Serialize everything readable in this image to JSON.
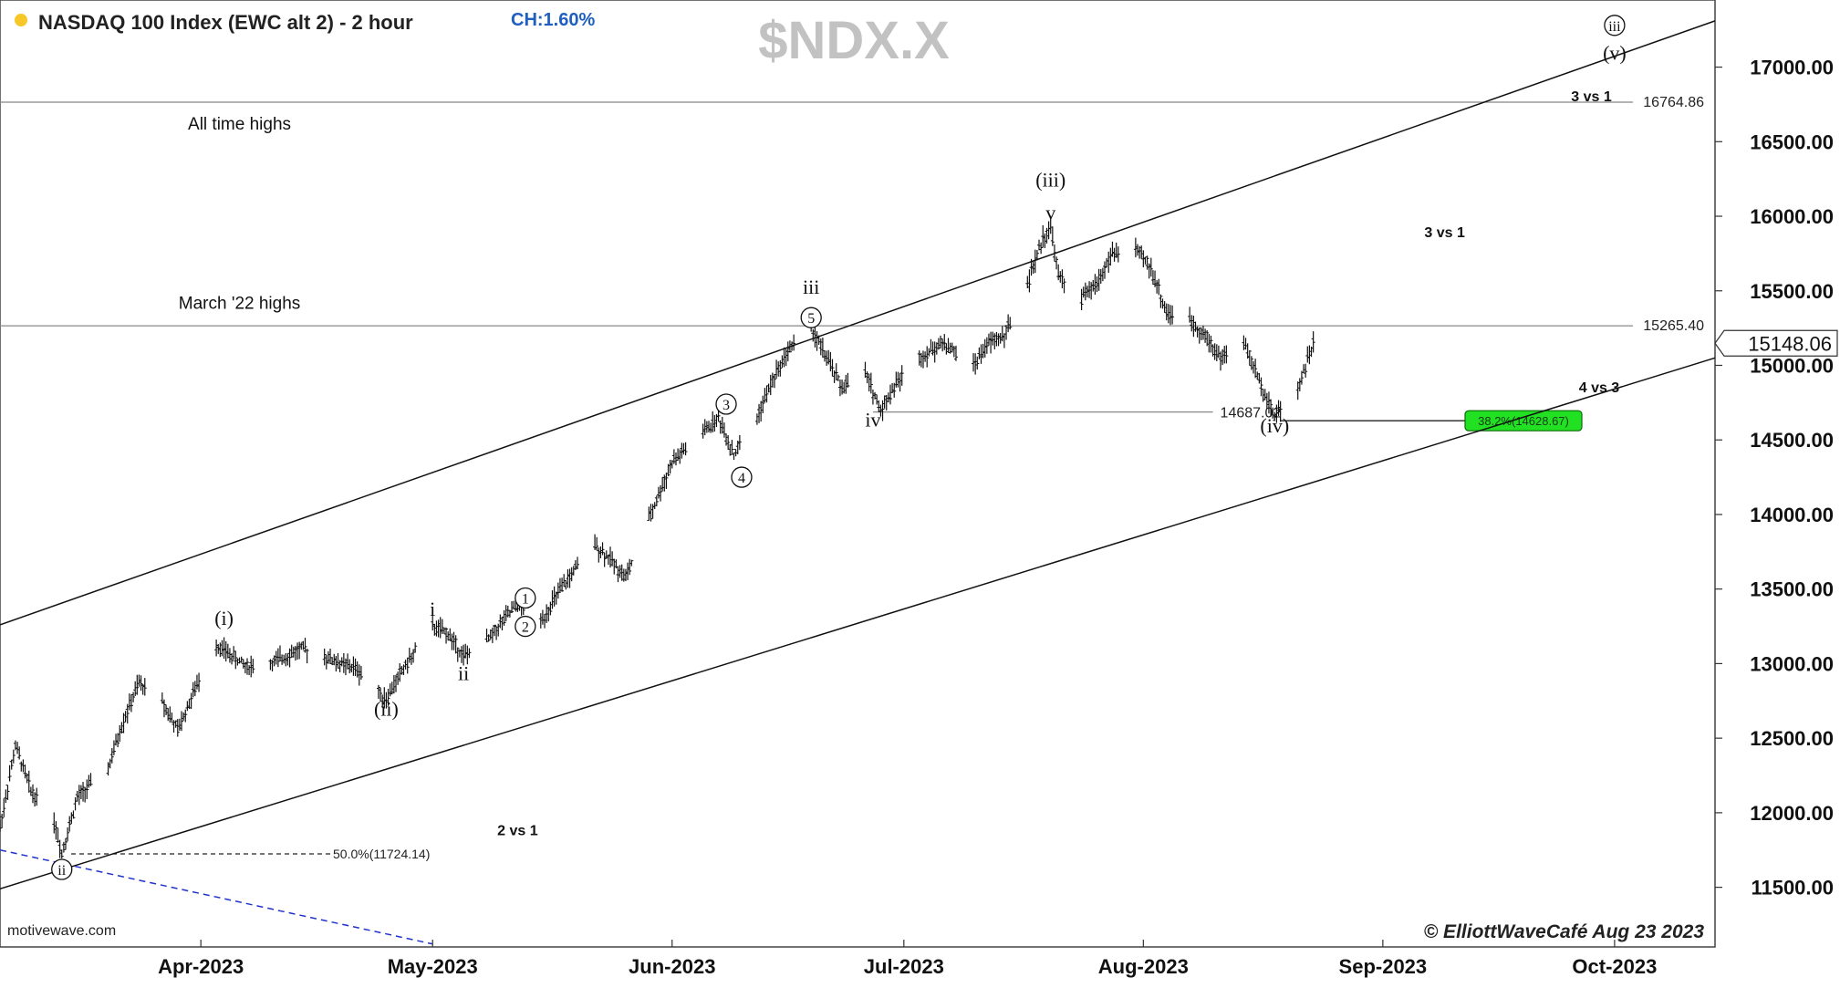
{
  "header": {
    "title": "NASDAQ 100 Index (EWC alt 2) - 2 hour",
    "change": "CH:1.60%",
    "watermark": "$NDX.X"
  },
  "footer": {
    "credit": "© ElliottWaveCafé Aug 23 2023",
    "source": "motivewave.com"
  },
  "chart_data": {
    "type": "ohlc",
    "x_start": "2023-03-06",
    "x_ticks": [
      "Apr-2023",
      "May-2023",
      "Jun-2023",
      "Jul-2023",
      "Aug-2023",
      "Sep-2023",
      "Oct-2023"
    ],
    "x_tick_dates": [
      "2023-04-01",
      "2023-05-01",
      "2023-06-01",
      "2023-07-01",
      "2023-08-01",
      "2023-09-01",
      "2023-10-01"
    ],
    "x_end": "2023-10-14",
    "ylim": [
      11100,
      17450
    ],
    "y_ticks": [
      11500,
      12000,
      12500,
      13000,
      13500,
      14000,
      14500,
      15000,
      15500,
      16000,
      16500,
      17000
    ],
    "y_tick_labels": [
      "11500.00",
      "12000.00",
      "12500.00",
      "13000.00",
      "13500.00",
      "14000.00",
      "14500.00",
      "15000.00",
      "15500.00",
      "16000.00",
      "16500.00",
      "17000.00"
    ],
    "last_price": 15148.06,
    "last_price_label": "15148.06",
    "price_path": [
      [
        "2023-03-06",
        11900
      ],
      [
        "2023-03-08",
        12450
      ],
      [
        "2023-03-10",
        12150
      ],
      [
        "2023-03-13",
        11950
      ],
      [
        "2023-03-14",
        11730
      ],
      [
        "2023-03-16",
        12100
      ],
      [
        "2023-03-20",
        12300
      ],
      [
        "2023-03-22",
        12620
      ],
      [
        "2023-03-24",
        12870
      ],
      [
        "2023-03-27",
        12750
      ],
      [
        "2023-03-29",
        12550
      ],
      [
        "2023-03-31",
        12800
      ],
      [
        "2023-04-03",
        13130
      ],
      [
        "2023-04-05",
        13050
      ],
      [
        "2023-04-07",
        12980
      ],
      [
        "2023-04-10",
        13000
      ],
      [
        "2023-04-12",
        13050
      ],
      [
        "2023-04-14",
        13100
      ],
      [
        "2023-04-17",
        13050
      ],
      [
        "2023-04-19",
        13000
      ],
      [
        "2023-04-21",
        12970
      ],
      [
        "2023-04-25",
        12760
      ],
      [
        "2023-04-27",
        12950
      ],
      [
        "2023-05-01",
        13250
      ],
      [
        "2023-05-03",
        13200
      ],
      [
        "2023-05-05",
        13050
      ],
      [
        "2023-05-08",
        13150
      ],
      [
        "2023-05-10",
        13280
      ],
      [
        "2023-05-12",
        13400
      ],
      [
        "2023-05-15",
        13280
      ],
      [
        "2023-05-17",
        13450
      ],
      [
        "2023-05-19",
        13600
      ],
      [
        "2023-05-22",
        13800
      ],
      [
        "2023-05-24",
        13700
      ],
      [
        "2023-05-26",
        13580
      ],
      [
        "2023-05-30",
        14100
      ],
      [
        "2023-06-01",
        14350
      ],
      [
        "2023-06-05",
        14550
      ],
      [
        "2023-06-07",
        14650
      ],
      [
        "2023-06-09",
        14400
      ],
      [
        "2023-06-12",
        14650
      ],
      [
        "2023-06-14",
        14900
      ],
      [
        "2023-06-16",
        15100
      ],
      [
        "2023-06-19",
        15250
      ],
      [
        "2023-06-21",
        15050
      ],
      [
        "2023-06-23",
        14850
      ],
      [
        "2023-06-26",
        14950
      ],
      [
        "2023-06-28",
        14700
      ],
      [
        "2023-06-30",
        14880
      ],
      [
        "2023-07-03",
        15050
      ],
      [
        "2023-07-06",
        15150
      ],
      [
        "2023-07-10",
        15000
      ],
      [
        "2023-07-12",
        15150
      ],
      [
        "2023-07-14",
        15200
      ],
      [
        "2023-07-17",
        15550
      ],
      [
        "2023-07-19",
        15850
      ],
      [
        "2023-07-20",
        15930
      ],
      [
        "2023-07-21",
        15600
      ],
      [
        "2023-07-24",
        15450
      ],
      [
        "2023-07-26",
        15550
      ],
      [
        "2023-07-28",
        15750
      ],
      [
        "2023-07-31",
        15780
      ],
      [
        "2023-08-02",
        15650
      ],
      [
        "2023-08-04",
        15350
      ],
      [
        "2023-08-07",
        15300
      ],
      [
        "2023-08-09",
        15200
      ],
      [
        "2023-08-11",
        15050
      ],
      [
        "2023-08-14",
        15150
      ],
      [
        "2023-08-16",
        14900
      ],
      [
        "2023-08-18",
        14660
      ],
      [
        "2023-08-21",
        14850
      ],
      [
        "2023-08-22",
        15000
      ],
      [
        "2023-08-23",
        15148
      ]
    ],
    "horizontal_levels": [
      {
        "value": 16764.86,
        "label": "16764.86",
        "note": "All time highs"
      },
      {
        "value": 15265.4,
        "label": "15265.40",
        "note": "March '22 highs"
      },
      {
        "value": 14687.02,
        "label": "14687.02",
        "from": "2023-06-27",
        "to": "2023-08-10"
      }
    ],
    "fibonacci": [
      {
        "label": "50.0%(11724.14)",
        "value": 11724.14,
        "style": "dashed"
      },
      {
        "label": "38.2%(14628.67)",
        "value": 14628.67,
        "style": "box"
      }
    ],
    "channel_lines": [
      {
        "from": [
          "2023-03-06",
          13260
        ],
        "to": [
          "2023-10-14",
          17310
        ]
      },
      {
        "from": [
          "2023-03-06",
          11490
        ],
        "to": [
          "2023-10-14",
          15050
        ]
      }
    ],
    "dashed_line": {
      "from": [
        "2023-03-06",
        11750
      ],
      "to": [
        "2023-05-01",
        11120
      ]
    },
    "wave_labels": [
      {
        "text": "ii",
        "date": "2023-03-14",
        "price": 11620,
        "circled": true
      },
      {
        "text": "(i)",
        "date": "2023-04-04",
        "price": 13260
      },
      {
        "text": "(ii)",
        "date": "2023-04-25",
        "price": 12650
      },
      {
        "text": "i",
        "date": "2023-05-01",
        "price": 13320
      },
      {
        "text": "ii",
        "date": "2023-05-05",
        "price": 12890
      },
      {
        "text": "1",
        "date": "2023-05-13",
        "price": 13440,
        "circled": true
      },
      {
        "text": "2",
        "date": "2023-05-13",
        "price": 13250,
        "circled": true
      },
      {
        "text": "3",
        "date": "2023-06-08",
        "price": 14740,
        "circled": true
      },
      {
        "text": "4",
        "date": "2023-06-10",
        "price": 14250,
        "circled": true
      },
      {
        "text": "5",
        "date": "2023-06-19",
        "price": 15320,
        "circled": true
      },
      {
        "text": "iii",
        "date": "2023-06-19",
        "price": 15480
      },
      {
        "text": "iv",
        "date": "2023-06-27",
        "price": 14590
      },
      {
        "text": "v",
        "date": "2023-07-20",
        "price": 15980
      },
      {
        "text": "(iii)",
        "date": "2023-07-20",
        "price": 16200
      },
      {
        "text": "(iv)",
        "date": "2023-08-18",
        "price": 14550
      },
      {
        "text": "iii",
        "date": "2023-10-01",
        "price": 17280,
        "circled": true
      },
      {
        "text": "(v)",
        "date": "2023-10-01",
        "price": 17050
      }
    ],
    "annotations": [
      {
        "text": "All time highs",
        "date": "2023-04-06",
        "price": 16580
      },
      {
        "text": "March '22 highs",
        "date": "2023-04-06",
        "price": 15380
      },
      {
        "text": "2 vs 1",
        "date": "2023-05-12",
        "price": 11850,
        "bold": true
      },
      {
        "text": "3 vs 1",
        "date": "2023-09-09",
        "price": 15860,
        "bold": true
      },
      {
        "text": "4 vs 3",
        "date": "2023-09-29",
        "price": 14820,
        "bold": true
      },
      {
        "text": "3 vs 1",
        "date": "2023-09-28",
        "price": 16770,
        "bold": true
      }
    ]
  }
}
